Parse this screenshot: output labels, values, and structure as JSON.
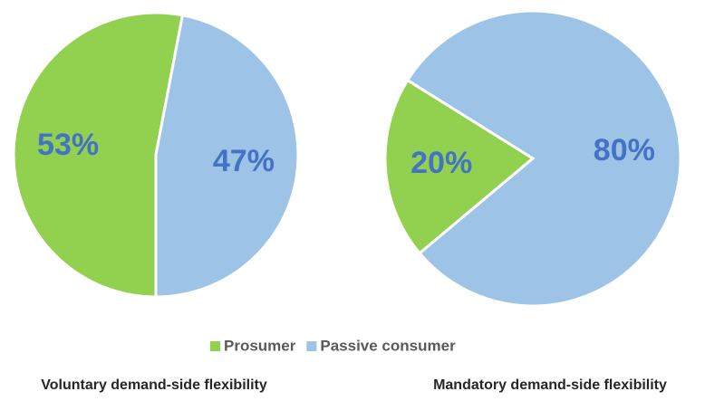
{
  "chart_data": [
    {
      "type": "pie",
      "title": "Voluntary demand-side flexibility",
      "categories": [
        "Prosumer",
        "Passive consumer"
      ],
      "values": [
        53,
        47
      ],
      "value_labels": [
        "53%",
        "47%"
      ],
      "colors": [
        "#92d050",
        "#9dc3e6"
      ]
    },
    {
      "type": "pie",
      "title": "Mandatory demand-side flexibility",
      "categories": [
        "Prosumer",
        "Passive consumer"
      ],
      "values": [
        20,
        80
      ],
      "value_labels": [
        "20%",
        "80%"
      ],
      "colors": [
        "#92d050",
        "#9dc3e6"
      ]
    }
  ]
}
